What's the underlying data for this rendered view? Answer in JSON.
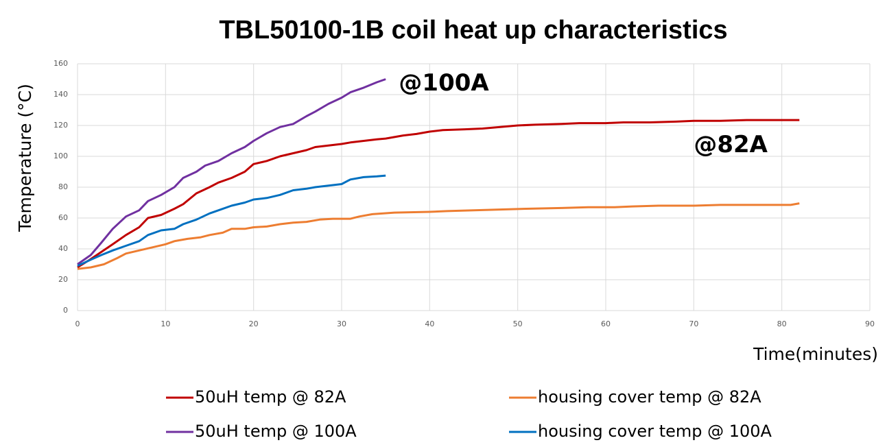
{
  "chart_data": {
    "type": "line",
    "title": "TBL50100-1B coil heat up characteristics",
    "xlabel": "Time(minutes)",
    "ylabel": "Temperature (°C)",
    "xlim": [
      0,
      90
    ],
    "xticks": [
      0,
      10,
      20,
      30,
      40,
      50,
      60,
      70,
      80,
      90
    ],
    "ylim": [
      0,
      160
    ],
    "yticks": [
      0,
      20,
      40,
      60,
      80,
      100,
      120,
      140,
      160
    ],
    "grid": true,
    "legend": "bottom",
    "annotations": [
      {
        "text": "@100A",
        "x": 36.5,
        "y": 147,
        "color": "#7030a0"
      },
      {
        "text": "@82A",
        "x": 70,
        "y": 107,
        "color": "#c00000"
      }
    ],
    "series": [
      {
        "name": "50uH temp @ 82A",
        "color": "#c00000",
        "x": [
          0,
          1.4,
          2.7,
          4,
          5.5,
          7,
          8,
          9.5,
          11,
          12,
          13.5,
          15,
          16,
          17.5,
          19,
          20,
          21.5,
          23,
          24.5,
          26,
          27,
          28.5,
          30,
          31,
          32.5,
          34,
          35,
          37,
          38.5,
          40,
          41.5,
          44,
          46,
          48,
          50,
          52,
          55,
          57,
          60,
          62,
          65,
          68,
          70,
          73,
          76,
          80,
          82
        ],
        "values": [
          28,
          33,
          38,
          43,
          49,
          54,
          60,
          62,
          66,
          69,
          76,
          80,
          83,
          86,
          90,
          95,
          97,
          100,
          102,
          104,
          106,
          107,
          108,
          109,
          110,
          111,
          111.5,
          113.5,
          114.5,
          116,
          117,
          117.5,
          118,
          119,
          120,
          120.5,
          121,
          121.5,
          121.5,
          122,
          122,
          122.5,
          123,
          123,
          123.5,
          123.5,
          123.5
        ]
      },
      {
        "name": "housing cover temp @ 82A",
        "color": "#ed7d31",
        "x": [
          0,
          1.5,
          3,
          4.5,
          5.5,
          7,
          8.5,
          10,
          11,
          12.5,
          14,
          15,
          16.5,
          17.5,
          19,
          20,
          21.5,
          23,
          24.5,
          26,
          27.5,
          29,
          31,
          32,
          33.5,
          36,
          40,
          42,
          45,
          48,
          51,
          55,
          58,
          61,
          63,
          66,
          70,
          73,
          77,
          81,
          82
        ],
        "values": [
          27,
          28,
          30,
          34,
          37,
          39,
          41,
          43,
          45,
          46.5,
          47.5,
          49,
          50.5,
          53,
          53,
          54,
          54.5,
          56,
          57,
          57.5,
          59,
          59.5,
          59.5,
          61,
          62.5,
          63.5,
          64,
          64.5,
          65,
          65.5,
          66,
          66.5,
          67,
          67,
          67.5,
          68,
          68,
          68.5,
          68.5,
          68.5,
          69.5
        ]
      },
      {
        "name": "50uH temp @ 100A",
        "color": "#7030a0",
        "x": [
          0,
          1.5,
          2.7,
          4,
          5.5,
          7,
          8,
          9.5,
          11,
          12,
          13.5,
          14.5,
          16,
          17.5,
          19,
          20,
          21.5,
          23,
          24.5,
          26,
          27,
          28.5,
          30,
          31,
          32.5,
          34,
          35
        ],
        "values": [
          30,
          36,
          44,
          53,
          61,
          65,
          71,
          75,
          80,
          86,
          90,
          94,
          97,
          102,
          106,
          110,
          115,
          119,
          121,
          126,
          129,
          134,
          138,
          141.5,
          144.5,
          148,
          150
        ]
      },
      {
        "name": "housing cover temp @ 100A",
        "color": "#0070c0",
        "x": [
          0,
          1.5,
          2.7,
          4,
          5.5,
          7,
          8,
          9.5,
          11,
          12,
          13.5,
          15,
          16,
          17.5,
          19,
          20,
          21.5,
          23,
          24.5,
          26,
          27,
          28.5,
          30,
          31,
          32.5,
          34,
          35
        ],
        "values": [
          29,
          33,
          36,
          39,
          42,
          45,
          49,
          52,
          53,
          56,
          59,
          63,
          65,
          68,
          70,
          72,
          73,
          75,
          78,
          79,
          80,
          81,
          82,
          85,
          86.5,
          87,
          87.5
        ]
      }
    ]
  }
}
